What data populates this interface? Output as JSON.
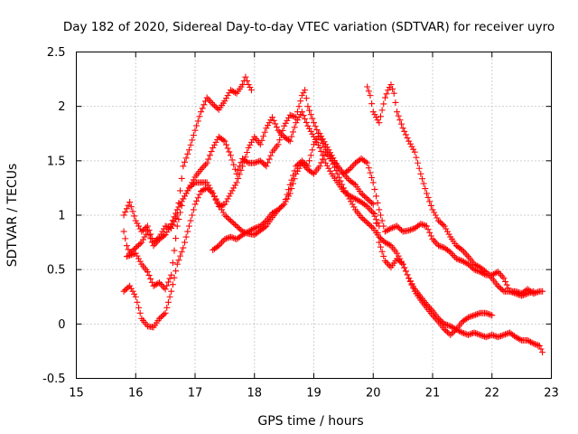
{
  "chart_data": {
    "type": "scatter",
    "title": "Day 182 of 2020, Sidereal Day-to-day VTEC variation (SDTVAR) for receiver uyro",
    "xlabel": "GPS time / hours",
    "ylabel": "SDTVAR / TECUs",
    "xlim": [
      15,
      23
    ],
    "ylim": [
      -0.5,
      2.5
    ],
    "xticks": [
      "15",
      "16",
      "17",
      "18",
      "19",
      "20",
      "21",
      "22",
      "23"
    ],
    "yticks": [
      "-0.5",
      "0",
      "0.5",
      "1",
      "1.5",
      "2",
      "2.5"
    ],
    "grid": true,
    "marker": "plus",
    "color": "#ff0000",
    "series": [
      {
        "name": "trace-1",
        "points": [
          [
            15.8,
            1.0
          ],
          [
            15.9,
            1.12
          ],
          [
            16.0,
            0.95
          ],
          [
            16.1,
            0.85
          ],
          [
            16.2,
            0.9
          ],
          [
            16.3,
            0.75
          ],
          [
            16.4,
            0.8
          ],
          [
            16.5,
            0.9
          ],
          [
            16.6,
            0.88
          ],
          [
            16.7,
            1.0
          ],
          [
            16.8,
            1.45
          ],
          [
            16.9,
            1.6
          ],
          [
            17.0,
            1.78
          ],
          [
            17.1,
            1.95
          ],
          [
            17.2,
            2.08
          ],
          [
            17.3,
            2.02
          ],
          [
            17.4,
            1.97
          ],
          [
            17.5,
            2.05
          ],
          [
            17.6,
            2.15
          ],
          [
            17.7,
            2.12
          ],
          [
            17.8,
            2.2
          ],
          [
            17.85,
            2.27
          ],
          [
            17.9,
            2.2
          ],
          [
            17.95,
            2.15
          ]
        ]
      },
      {
        "name": "trace-2",
        "points": [
          [
            15.85,
            0.62
          ],
          [
            16.0,
            0.65
          ],
          [
            16.1,
            0.55
          ],
          [
            16.2,
            0.48
          ],
          [
            16.3,
            0.35
          ],
          [
            16.4,
            0.38
          ],
          [
            16.5,
            0.32
          ],
          [
            16.6,
            0.45
          ],
          [
            16.7,
            0.9
          ],
          [
            16.8,
            1.15
          ],
          [
            16.9,
            1.25
          ],
          [
            17.0,
            1.35
          ],
          [
            17.1,
            1.42
          ],
          [
            17.2,
            1.48
          ],
          [
            17.3,
            1.62
          ],
          [
            17.4,
            1.72
          ],
          [
            17.5,
            1.68
          ],
          [
            17.6,
            1.55
          ],
          [
            17.7,
            1.38
          ],
          [
            17.8,
            1.52
          ],
          [
            17.9,
            1.48
          ],
          [
            18.0,
            1.48
          ],
          [
            18.1,
            1.5
          ],
          [
            18.2,
            1.45
          ],
          [
            18.3,
            1.58
          ],
          [
            18.4,
            1.65
          ],
          [
            18.5,
            1.82
          ],
          [
            18.6,
            1.92
          ],
          [
            18.7,
            1.9
          ],
          [
            18.8,
            2.1
          ],
          [
            18.85,
            2.15
          ],
          [
            18.9,
            2.0
          ],
          [
            19.0,
            1.85
          ],
          [
            19.1,
            1.72
          ],
          [
            19.2,
            1.6
          ],
          [
            19.3,
            1.52
          ],
          [
            19.4,
            1.45
          ],
          [
            19.5,
            1.38
          ],
          [
            19.6,
            1.32
          ],
          [
            19.7,
            1.28
          ],
          [
            19.8,
            1.2
          ],
          [
            19.9,
            1.15
          ],
          [
            20.0,
            1.1
          ],
          [
            20.1,
            0.75
          ],
          [
            20.2,
            0.58
          ],
          [
            20.3,
            0.52
          ],
          [
            20.4,
            0.6
          ],
          [
            20.5,
            0.55
          ],
          [
            20.6,
            0.42
          ],
          [
            20.7,
            0.3
          ],
          [
            20.8,
            0.22
          ],
          [
            20.9,
            0.15
          ],
          [
            21.0,
            0.08
          ],
          [
            21.1,
            0.02
          ],
          [
            21.2,
            -0.05
          ],
          [
            21.3,
            -0.1
          ],
          [
            21.4,
            -0.05
          ],
          [
            21.5,
            -0.08
          ],
          [
            21.6,
            -0.1
          ],
          [
            21.7,
            -0.08
          ],
          [
            21.8,
            -0.1
          ],
          [
            21.9,
            -0.12
          ],
          [
            22.0,
            -0.1
          ],
          [
            22.1,
            -0.12
          ],
          [
            22.2,
            -0.1
          ],
          [
            22.3,
            -0.08
          ],
          [
            22.4,
            -0.12
          ],
          [
            22.5,
            -0.15
          ],
          [
            22.6,
            -0.15
          ],
          [
            22.7,
            -0.18
          ],
          [
            22.8,
            -0.2
          ],
          [
            22.85,
            -0.26
          ]
        ]
      },
      {
        "name": "trace-3",
        "points": [
          [
            15.8,
            0.3
          ],
          [
            15.9,
            0.35
          ],
          [
            16.0,
            0.25
          ],
          [
            16.1,
            0.05
          ],
          [
            16.2,
            -0.02
          ],
          [
            16.3,
            -0.03
          ],
          [
            16.4,
            0.05
          ],
          [
            16.5,
            0.1
          ],
          [
            16.6,
            0.3
          ],
          [
            16.7,
            0.55
          ],
          [
            16.8,
            0.7
          ],
          [
            16.9,
            0.9
          ],
          [
            17.0,
            1.1
          ],
          [
            17.1,
            1.22
          ],
          [
            17.2,
            1.25
          ],
          [
            17.3,
            1.2
          ],
          [
            17.4,
            1.1
          ],
          [
            17.5,
            1.0
          ],
          [
            17.6,
            0.95
          ],
          [
            17.7,
            0.9
          ],
          [
            17.8,
            0.85
          ],
          [
            17.9,
            0.83
          ],
          [
            18.0,
            0.82
          ],
          [
            18.1,
            0.86
          ],
          [
            18.2,
            0.9
          ],
          [
            18.3,
            0.98
          ],
          [
            18.4,
            1.05
          ],
          [
            18.5,
            1.1
          ],
          [
            18.6,
            1.2
          ],
          [
            18.7,
            1.38
          ],
          [
            18.8,
            1.48
          ],
          [
            18.9,
            1.42
          ],
          [
            19.0,
            1.38
          ],
          [
            19.1,
            1.45
          ],
          [
            19.2,
            1.58
          ],
          [
            19.3,
            1.5
          ],
          [
            19.4,
            1.38
          ],
          [
            19.5,
            1.25
          ],
          [
            19.6,
            1.15
          ],
          [
            19.7,
            1.05
          ],
          [
            19.8,
            0.98
          ],
          [
            19.9,
            0.93
          ],
          [
            20.0,
            0.88
          ],
          [
            20.1,
            0.8
          ],
          [
            20.2,
            0.75
          ],
          [
            20.3,
            0.72
          ],
          [
            20.4,
            0.65
          ],
          [
            20.5,
            0.55
          ],
          [
            20.6,
            0.42
          ],
          [
            20.7,
            0.32
          ],
          [
            20.8,
            0.25
          ],
          [
            20.9,
            0.18
          ],
          [
            21.0,
            0.12
          ],
          [
            21.1,
            0.05
          ],
          [
            21.2,
            0.0
          ],
          [
            21.3,
            -0.02
          ],
          [
            21.4,
            -0.05
          ],
          [
            21.5,
            0.02
          ],
          [
            21.6,
            0.06
          ],
          [
            21.7,
            0.08
          ],
          [
            21.8,
            0.1
          ],
          [
            21.9,
            0.1
          ],
          [
            22.0,
            0.08
          ]
        ]
      },
      {
        "name": "trace-4",
        "points": [
          [
            17.3,
            0.68
          ],
          [
            17.4,
            0.72
          ],
          [
            17.5,
            0.78
          ],
          [
            17.6,
            0.8
          ],
          [
            17.7,
            0.78
          ],
          [
            17.8,
            0.82
          ],
          [
            17.9,
            0.85
          ],
          [
            18.0,
            0.88
          ],
          [
            18.1,
            0.9
          ],
          [
            18.2,
            0.95
          ],
          [
            18.3,
            1.02
          ],
          [
            18.4,
            1.05
          ],
          [
            18.5,
            1.1
          ],
          [
            18.6,
            1.28
          ],
          [
            18.7,
            1.45
          ],
          [
            18.8,
            1.5
          ],
          [
            18.9,
            1.45
          ],
          [
            19.0,
            1.65
          ],
          [
            19.1,
            1.75
          ],
          [
            19.2,
            1.65
          ],
          [
            19.3,
            1.55
          ],
          [
            19.4,
            1.45
          ],
          [
            19.5,
            1.38
          ],
          [
            19.6,
            1.42
          ],
          [
            19.7,
            1.48
          ],
          [
            19.8,
            1.52
          ],
          [
            19.9,
            1.48
          ],
          [
            20.0,
            1.3
          ],
          [
            20.1,
            1.05
          ],
          [
            20.2,
            0.85
          ],
          [
            20.3,
            0.88
          ],
          [
            20.4,
            0.9
          ],
          [
            20.5,
            0.85
          ],
          [
            20.6,
            0.86
          ],
          [
            20.7,
            0.88
          ],
          [
            20.8,
            0.92
          ],
          [
            20.9,
            0.9
          ],
          [
            21.0,
            0.78
          ],
          [
            21.1,
            0.72
          ],
          [
            21.2,
            0.7
          ],
          [
            21.3,
            0.66
          ],
          [
            21.4,
            0.6
          ],
          [
            21.5,
            0.58
          ],
          [
            21.6,
            0.55
          ],
          [
            21.7,
            0.5
          ],
          [
            21.8,
            0.48
          ],
          [
            21.9,
            0.45
          ],
          [
            22.0,
            0.45
          ],
          [
            22.1,
            0.48
          ],
          [
            22.2,
            0.42
          ],
          [
            22.3,
            0.3
          ],
          [
            22.4,
            0.3
          ],
          [
            22.5,
            0.28
          ],
          [
            22.6,
            0.32
          ],
          [
            22.7,
            0.28
          ],
          [
            22.8,
            0.3
          ],
          [
            22.85,
            0.3
          ]
        ]
      },
      {
        "name": "trace-5",
        "points": [
          [
            15.8,
            0.85
          ],
          [
            15.85,
            0.72
          ],
          [
            15.9,
            0.65
          ],
          [
            16.0,
            0.7
          ],
          [
            16.1,
            0.75
          ],
          [
            16.2,
            0.85
          ],
          [
            16.3,
            0.72
          ],
          [
            16.4,
            0.78
          ],
          [
            16.5,
            0.82
          ],
          [
            16.6,
            0.92
          ],
          [
            16.7,
            1.05
          ],
          [
            16.8,
            1.15
          ],
          [
            16.9,
            1.25
          ],
          [
            17.0,
            1.3
          ],
          [
            17.1,
            1.3
          ],
          [
            17.2,
            1.3
          ],
          [
            17.3,
            1.2
          ],
          [
            17.4,
            1.08
          ],
          [
            17.5,
            1.1
          ],
          [
            17.6,
            1.2
          ],
          [
            17.7,
            1.3
          ],
          [
            17.8,
            1.45
          ],
          [
            17.9,
            1.62
          ],
          [
            18.0,
            1.72
          ],
          [
            18.1,
            1.65
          ],
          [
            18.2,
            1.8
          ],
          [
            18.3,
            1.9
          ],
          [
            18.4,
            1.78
          ],
          [
            18.5,
            1.72
          ],
          [
            18.6,
            1.68
          ],
          [
            18.7,
            1.85
          ],
          [
            18.8,
            1.95
          ],
          [
            18.9,
            1.82
          ],
          [
            19.0,
            1.72
          ],
          [
            19.1,
            1.62
          ],
          [
            19.2,
            1.48
          ],
          [
            19.3,
            1.38
          ],
          [
            19.4,
            1.3
          ],
          [
            19.5,
            1.22
          ],
          [
            19.6,
            1.18
          ],
          [
            19.7,
            1.15
          ],
          [
            19.8,
            1.12
          ],
          [
            19.9,
            1.08
          ],
          [
            20.0,
            1.02
          ],
          [
            20.1,
            0.9
          ]
        ]
      },
      {
        "name": "trace-6",
        "points": [
          [
            19.9,
            2.18
          ],
          [
            19.95,
            2.1
          ],
          [
            20.0,
            1.95
          ],
          [
            20.1,
            1.85
          ],
          [
            20.2,
            2.08
          ],
          [
            20.25,
            2.15
          ],
          [
            20.3,
            2.2
          ],
          [
            20.35,
            2.12
          ],
          [
            20.4,
            1.95
          ],
          [
            20.5,
            1.8
          ],
          [
            20.6,
            1.68
          ],
          [
            20.7,
            1.58
          ],
          [
            20.8,
            1.38
          ],
          [
            20.9,
            1.2
          ],
          [
            21.0,
            1.05
          ],
          [
            21.1,
            0.95
          ],
          [
            21.2,
            0.9
          ],
          [
            21.3,
            0.8
          ],
          [
            21.4,
            0.72
          ],
          [
            21.5,
            0.68
          ],
          [
            21.6,
            0.62
          ],
          [
            21.7,
            0.55
          ],
          [
            21.8,
            0.52
          ],
          [
            21.9,
            0.48
          ],
          [
            22.0,
            0.42
          ],
          [
            22.1,
            0.35
          ],
          [
            22.2,
            0.3
          ],
          [
            22.3,
            0.3
          ],
          [
            22.4,
            0.28
          ],
          [
            22.5,
            0.26
          ],
          [
            22.6,
            0.28
          ],
          [
            22.7,
            0.3
          ]
        ]
      }
    ]
  }
}
